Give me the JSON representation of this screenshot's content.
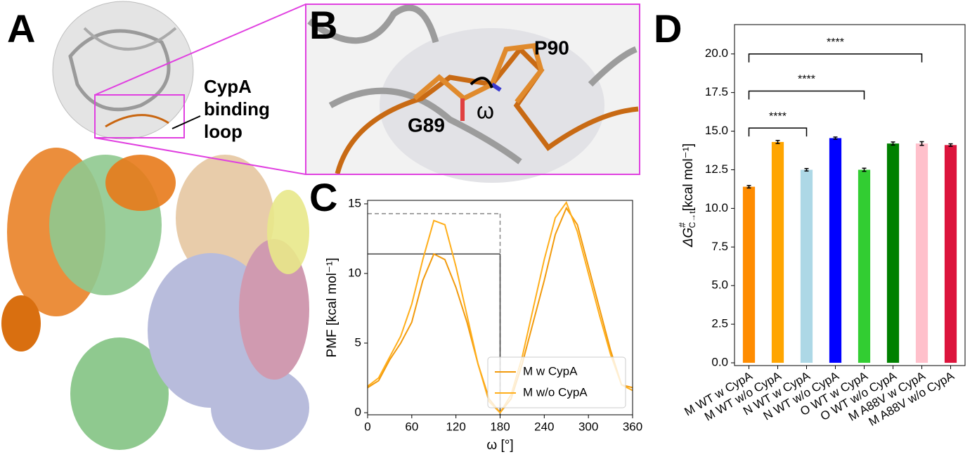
{
  "panels": {
    "a_label": "A",
    "b_label": "B",
    "c_label": "C",
    "d_label": "D",
    "a_annotation": [
      "CypA",
      "binding",
      "loop"
    ],
    "b_labels": {
      "p90": "P90",
      "g89": "G89",
      "omega": "ω"
    }
  },
  "chart_data": [
    {
      "type": "line",
      "xlabel": "ω [°]",
      "ylabel": "PMF [kcal mol⁻¹]",
      "x": [
        0,
        15,
        30,
        45,
        60,
        75,
        90,
        105,
        120,
        135,
        150,
        165,
        180,
        195,
        210,
        225,
        240,
        255,
        270,
        285,
        300,
        315,
        330,
        345,
        360
      ],
      "series": [
        {
          "name": "M w CypA",
          "color": "#f29a0c",
          "values": [
            1.8,
            2.3,
            3.8,
            5,
            6.5,
            9.5,
            11.4,
            11,
            9,
            6.5,
            3.5,
            1,
            0,
            1,
            3.5,
            6.5,
            9.5,
            12.8,
            14.7,
            13.5,
            10.5,
            7.5,
            4.5,
            2,
            1.8
          ]
        },
        {
          "name": "M w/o CypA",
          "color": "#ffae1a",
          "values": [
            1.9,
            2.5,
            4,
            5.5,
            7.8,
            11,
            13.8,
            13.5,
            10.5,
            7,
            3.5,
            0.8,
            0,
            1.3,
            4,
            7.5,
            11,
            14,
            15.1,
            13,
            10,
            7,
            4.2,
            2,
            1.6
          ]
        }
      ],
      "reference_lines": [
        {
          "y": 14.3,
          "x": 180,
          "style": "dashed",
          "color": "#888888"
        },
        {
          "y": 11.4,
          "x": 180,
          "style": "solid",
          "color": "#444444"
        }
      ],
      "xlim": [
        0,
        360
      ],
      "xticks": [
        0,
        60,
        120,
        180,
        240,
        300,
        360
      ],
      "ylim": [
        -0.15,
        15.25
      ],
      "yticks": [
        0,
        5,
        10,
        15
      ],
      "legend": "lower right"
    },
    {
      "type": "bar",
      "ylabel": {
        "main": "ΔG",
        "sup": "#",
        "sub": "C→t",
        "unit": "[kcal mol⁻¹]"
      },
      "categories": [
        "M WT w CypA",
        "M WT w/o CypA",
        "N WT w CypA",
        "N WT w/o CypA",
        "O WT w CypA",
        "O WT w/o CypA",
        "M A88V w CypA",
        "M A88V w/o CypA"
      ],
      "values": [
        11.4,
        14.3,
        12.5,
        14.55,
        12.5,
        14.2,
        14.2,
        14.1
      ],
      "errors": [
        0.08,
        0.1,
        0.08,
        0.07,
        0.1,
        0.1,
        0.12,
        0.08
      ],
      "colors": [
        "#ff8c00",
        "#ffa500",
        "#add8e6",
        "#0000ff",
        "#32cd32",
        "#008000",
        "#ffc0cb",
        "#dc143c"
      ],
      "significance": [
        {
          "from": 0,
          "to": 2,
          "y": 15.2,
          "label": "****"
        },
        {
          "from": 0,
          "to": 4,
          "y": 17.6,
          "label": "****"
        },
        {
          "from": 0,
          "to": 6,
          "y": 20.0,
          "label": "****"
        }
      ],
      "ylim": [
        -0.18,
        21.9
      ],
      "yticks": [
        {
          "value": 0,
          "label": "0.0"
        },
        {
          "value": 2.5,
          "label": "2.5"
        },
        {
          "value": 5,
          "label": "5.0"
        },
        {
          "value": 7.5,
          "label": "7.5"
        },
        {
          "value": 10,
          "label": "10.0"
        },
        {
          "value": 12.5,
          "label": "12.5"
        },
        {
          "value": 15,
          "label": "15.0"
        },
        {
          "value": 17.5,
          "label": "17.5"
        },
        {
          "value": 20,
          "label": "20.0"
        }
      ]
    }
  ]
}
